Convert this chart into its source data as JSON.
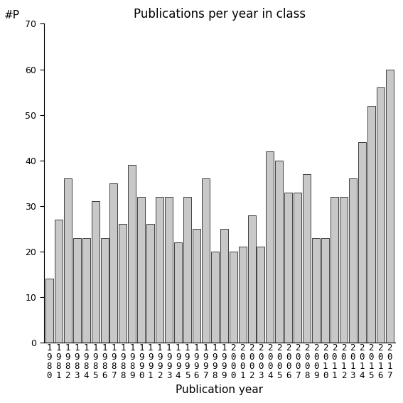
{
  "title": "Publications per year in class",
  "xlabel": "Publication year",
  "ylabel": "#P",
  "years": [
    1980,
    1981,
    1982,
    1983,
    1984,
    1985,
    1986,
    1987,
    1988,
    1989,
    1990,
    1991,
    1992,
    1993,
    1994,
    1995,
    1996,
    1997,
    1998,
    1999,
    2000,
    2001,
    2002,
    2003,
    2004,
    2005,
    2006,
    2007,
    2008,
    2009,
    2010,
    2011,
    2012,
    2013,
    2014,
    2015,
    2016,
    2017
  ],
  "values": [
    14,
    27,
    36,
    23,
    23,
    31,
    23,
    35,
    26,
    39,
    32,
    26,
    32,
    32,
    22,
    32,
    25,
    36,
    20,
    25,
    20,
    21,
    28,
    21,
    42,
    40,
    33,
    33,
    37,
    23,
    23,
    32,
    32,
    36,
    44,
    52,
    56,
    60
  ],
  "bar_color": "#c8c8c8",
  "bar_edge_color": "#000000",
  "ylim": [
    0,
    70
  ],
  "yticks": [
    0,
    10,
    20,
    30,
    40,
    50,
    60,
    70
  ],
  "bg_color": "#ffffff",
  "title_fontsize": 12,
  "xlabel_fontsize": 11,
  "ylabel_fontsize": 11,
  "tick_fontsize": 9
}
